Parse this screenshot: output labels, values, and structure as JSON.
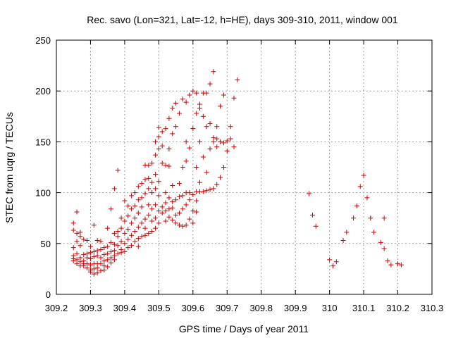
{
  "chart_data": {
    "type": "scatter",
    "title": "Rec. savo (Lon=321, Lat=-12, h=HE), days 309-310, 2011, window 001",
    "xlabel": "GPS time / Days of year 2011",
    "ylabel": "STEC from uqrg / TECUs",
    "xlim": [
      309.2,
      310.3
    ],
    "ylim": [
      0,
      250
    ],
    "x_ticks": [
      309.2,
      309.3,
      309.4,
      309.5,
      309.6,
      309.7,
      309.8,
      309.9,
      310,
      310.1,
      310.2,
      310.3
    ],
    "x_tick_labels": [
      "309.2",
      "309.3",
      "309.4",
      "309.5",
      "309.6",
      "309.7",
      "309.8",
      "309.9",
      "310",
      "310.1",
      "310.2",
      "310.3"
    ],
    "y_ticks": [
      0,
      50,
      100,
      150,
      200,
      250
    ],
    "y_tick_labels": [
      "0",
      "50",
      "100",
      "150",
      "200",
      "250"
    ],
    "grid": true,
    "marker_color": "#cc0000",
    "series": [
      {
        "name": "STEC",
        "points": [
          [
            309.25,
            70
          ],
          [
            309.25,
            63
          ],
          [
            309.25,
            46
          ],
          [
            309.25,
            38
          ],
          [
            309.25,
            35
          ],
          [
            309.25,
            33
          ],
          [
            309.26,
            81
          ],
          [
            309.26,
            60
          ],
          [
            309.26,
            52
          ],
          [
            309.26,
            40
          ],
          [
            309.26,
            34
          ],
          [
            309.26,
            30
          ],
          [
            309.27,
            61
          ],
          [
            309.27,
            57
          ],
          [
            309.27,
            48
          ],
          [
            309.27,
            36
          ],
          [
            309.27,
            32
          ],
          [
            309.27,
            28
          ],
          [
            309.28,
            54
          ],
          [
            309.28,
            39
          ],
          [
            309.28,
            33
          ],
          [
            309.28,
            30
          ],
          [
            309.28,
            28
          ],
          [
            309.29,
            53
          ],
          [
            309.29,
            40
          ],
          [
            309.29,
            36
          ],
          [
            309.29,
            30
          ],
          [
            309.29,
            26
          ],
          [
            309.3,
            47
          ],
          [
            309.3,
            41
          ],
          [
            309.3,
            35
          ],
          [
            309.3,
            29
          ],
          [
            309.3,
            24
          ],
          [
            309.3,
            22
          ],
          [
            309.31,
            68
          ],
          [
            309.31,
            42
          ],
          [
            309.31,
            37
          ],
          [
            309.31,
            30
          ],
          [
            309.31,
            25
          ],
          [
            309.31,
            20
          ],
          [
            309.32,
            53
          ],
          [
            309.32,
            43
          ],
          [
            309.32,
            38
          ],
          [
            309.32,
            30
          ],
          [
            309.32,
            26
          ],
          [
            309.32,
            21
          ],
          [
            309.33,
            52
          ],
          [
            309.33,
            44
          ],
          [
            309.33,
            36
          ],
          [
            309.33,
            30
          ],
          [
            309.33,
            23
          ],
          [
            309.34,
            46
          ],
          [
            309.34,
            39
          ],
          [
            309.34,
            33
          ],
          [
            309.34,
            28
          ],
          [
            309.34,
            24
          ],
          [
            309.35,
            65
          ],
          [
            309.35,
            47
          ],
          [
            309.35,
            40
          ],
          [
            309.35,
            34
          ],
          [
            309.35,
            27
          ],
          [
            309.36,
            84
          ],
          [
            309.36,
            51
          ],
          [
            309.36,
            42
          ],
          [
            309.36,
            36
          ],
          [
            309.36,
            31
          ],
          [
            309.37,
            104
          ],
          [
            309.37,
            60
          ],
          [
            309.37,
            49
          ],
          [
            309.37,
            43
          ],
          [
            309.37,
            38
          ],
          [
            309.37,
            34
          ],
          [
            309.38,
            122
          ],
          [
            309.38,
            62
          ],
          [
            309.38,
            57
          ],
          [
            309.38,
            48
          ],
          [
            309.38,
            40
          ],
          [
            309.39,
            75
          ],
          [
            309.39,
            65
          ],
          [
            309.39,
            52
          ],
          [
            309.39,
            44
          ],
          [
            309.39,
            41
          ],
          [
            309.4,
            92
          ],
          [
            309.4,
            72
          ],
          [
            309.4,
            60
          ],
          [
            309.4,
            50
          ],
          [
            309.4,
            42
          ],
          [
            309.41,
            87
          ],
          [
            309.41,
            77
          ],
          [
            309.41,
            64
          ],
          [
            309.41,
            54
          ],
          [
            309.41,
            46
          ],
          [
            309.42,
            97
          ],
          [
            309.42,
            84
          ],
          [
            309.42,
            70
          ],
          [
            309.42,
            58
          ],
          [
            309.42,
            48
          ],
          [
            309.43,
            100
          ],
          [
            309.43,
            87
          ],
          [
            309.43,
            75
          ],
          [
            309.43,
            62
          ],
          [
            309.43,
            52
          ],
          [
            309.44,
            106
          ],
          [
            309.44,
            93
          ],
          [
            309.44,
            80
          ],
          [
            309.44,
            66
          ],
          [
            309.44,
            55
          ],
          [
            309.44,
            47
          ],
          [
            309.45,
            109
          ],
          [
            309.45,
            95
          ],
          [
            309.45,
            86
          ],
          [
            309.45,
            70
          ],
          [
            309.45,
            57
          ],
          [
            309.46,
            127
          ],
          [
            309.46,
            113
          ],
          [
            309.46,
            99
          ],
          [
            309.46,
            74
          ],
          [
            309.46,
            65
          ],
          [
            309.46,
            58
          ],
          [
            309.47,
            127
          ],
          [
            309.47,
            114
          ],
          [
            309.47,
            104
          ],
          [
            309.47,
            88
          ],
          [
            309.47,
            78
          ],
          [
            309.47,
            60
          ],
          [
            309.48,
            129
          ],
          [
            309.48,
            110
          ],
          [
            309.48,
            100
          ],
          [
            309.48,
            84
          ],
          [
            309.48,
            72
          ],
          [
            309.48,
            62
          ],
          [
            309.49,
            150
          ],
          [
            309.49,
            137
          ],
          [
            309.49,
            118
          ],
          [
            309.49,
            104
          ],
          [
            309.49,
            88
          ],
          [
            309.49,
            75
          ],
          [
            309.49,
            65
          ],
          [
            309.5,
            164
          ],
          [
            309.5,
            155
          ],
          [
            309.5,
            143
          ],
          [
            309.5,
            111
          ],
          [
            309.5,
            97
          ],
          [
            309.5,
            82
          ],
          [
            309.5,
            70
          ],
          [
            309.51,
            160
          ],
          [
            309.51,
            146
          ],
          [
            309.51,
            129
          ],
          [
            309.51,
            86
          ],
          [
            309.51,
            80
          ],
          [
            309.52,
            163
          ],
          [
            309.52,
            127
          ],
          [
            309.52,
            100
          ],
          [
            309.52,
            90
          ],
          [
            309.52,
            82
          ],
          [
            309.52,
            72
          ],
          [
            309.53,
            173
          ],
          [
            309.53,
            143
          ],
          [
            309.53,
            126
          ],
          [
            309.53,
            95
          ],
          [
            309.53,
            84
          ],
          [
            309.53,
            76
          ],
          [
            309.54,
            183
          ],
          [
            309.54,
            158
          ],
          [
            309.54,
            107
          ],
          [
            309.54,
            91
          ],
          [
            309.54,
            85
          ],
          [
            309.54,
            73
          ],
          [
            309.55,
            188
          ],
          [
            309.55,
            165
          ],
          [
            309.55,
            93
          ],
          [
            309.55,
            78
          ],
          [
            309.55,
            70
          ],
          [
            309.56,
            178
          ],
          [
            309.56,
            109
          ],
          [
            309.56,
            96
          ],
          [
            309.56,
            80
          ],
          [
            309.56,
            68
          ],
          [
            309.57,
            192
          ],
          [
            309.57,
            125
          ],
          [
            309.57,
            97
          ],
          [
            309.57,
            84
          ],
          [
            309.57,
            67
          ],
          [
            309.58,
            189
          ],
          [
            309.58,
            150
          ],
          [
            309.58,
            131
          ],
          [
            309.58,
            100
          ],
          [
            309.58,
            88
          ],
          [
            309.58,
            68
          ],
          [
            309.59,
            196
          ],
          [
            309.59,
            144
          ],
          [
            309.59,
            100
          ],
          [
            309.59,
            93
          ],
          [
            309.59,
            74
          ],
          [
            309.6,
            200
          ],
          [
            309.6,
            163
          ],
          [
            309.6,
            98
          ],
          [
            309.6,
            82
          ],
          [
            309.6,
            70
          ],
          [
            309.61,
            198
          ],
          [
            309.61,
            178
          ],
          [
            309.61,
            125
          ],
          [
            309.61,
            101
          ],
          [
            309.61,
            92
          ],
          [
            309.61,
            81
          ],
          [
            309.62,
            187
          ],
          [
            309.62,
            183
          ],
          [
            309.62,
            150
          ],
          [
            309.62,
            110
          ],
          [
            309.62,
            101
          ],
          [
            309.63,
            198
          ],
          [
            309.63,
            175
          ],
          [
            309.63,
            135
          ],
          [
            309.63,
            101
          ],
          [
            309.64,
            198
          ],
          [
            309.64,
            165
          ],
          [
            309.64,
            120
          ],
          [
            309.64,
            102
          ],
          [
            309.65,
            207
          ],
          [
            309.65,
            168
          ],
          [
            309.65,
            143
          ],
          [
            309.65,
            103
          ],
          [
            309.66,
            219
          ],
          [
            309.66,
            154
          ],
          [
            309.66,
            150
          ],
          [
            309.66,
            104
          ],
          [
            309.67,
            165
          ],
          [
            309.67,
            153
          ],
          [
            309.67,
            145
          ],
          [
            309.67,
            108
          ],
          [
            309.68,
            185
          ],
          [
            309.68,
            150
          ],
          [
            309.68,
            115
          ],
          [
            309.69,
            196
          ],
          [
            309.69,
            149
          ],
          [
            309.69,
            125
          ],
          [
            309.7,
            151
          ],
          [
            309.7,
            141
          ],
          [
            309.71,
            165
          ],
          [
            309.71,
            153
          ],
          [
            309.72,
            193
          ],
          [
            309.72,
            145
          ],
          [
            309.73,
            211
          ],
          [
            309.94,
            99
          ],
          [
            309.95,
            78
          ],
          [
            309.96,
            67
          ],
          [
            310.0,
            34
          ],
          [
            310.01,
            28
          ],
          [
            310.02,
            32
          ],
          [
            310.04,
            53
          ],
          [
            310.05,
            61
          ],
          [
            310.07,
            75
          ],
          [
            310.08,
            87
          ],
          [
            310.09,
            106
          ],
          [
            310.1,
            117
          ],
          [
            310.11,
            95
          ],
          [
            310.12,
            75
          ],
          [
            310.13,
            61
          ],
          [
            310.15,
            51
          ],
          [
            310.16,
            45
          ],
          [
            310.16,
            75
          ],
          [
            310.17,
            33
          ],
          [
            310.18,
            29
          ],
          [
            310.2,
            30
          ],
          [
            310.21,
            29
          ]
        ]
      }
    ]
  }
}
